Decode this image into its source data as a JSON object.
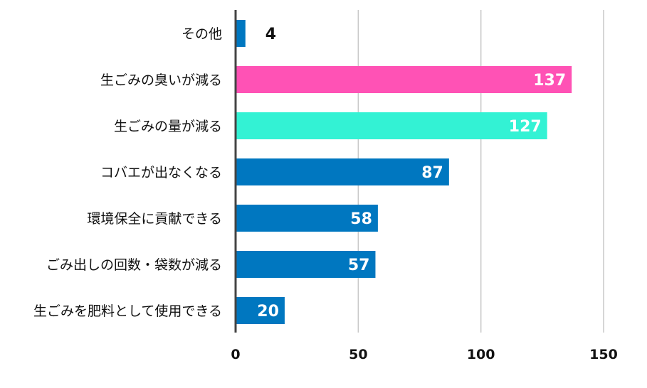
{
  "chart_data": {
    "type": "bar",
    "orientation": "horizontal",
    "categories": [
      "その他",
      "生ごみの臭いが減る",
      "生ごみの量が減る",
      "コバエが出なくなる",
      "環境保全に貢献できる",
      "ごみ出しの回数・袋数が減る",
      "生ごみを肥料として使用できる"
    ],
    "values": [
      4,
      137,
      127,
      87,
      58,
      57,
      20
    ],
    "colors": [
      "#0077c0",
      "#ff52b5",
      "#33f2d4",
      "#0077c0",
      "#0077c0",
      "#0077c0",
      "#0077c0"
    ],
    "xlim": [
      0,
      150
    ],
    "xticks": [
      "0",
      "50",
      "100",
      "150"
    ],
    "grid": true,
    "title": "",
    "xlabel": "",
    "ylabel": ""
  }
}
